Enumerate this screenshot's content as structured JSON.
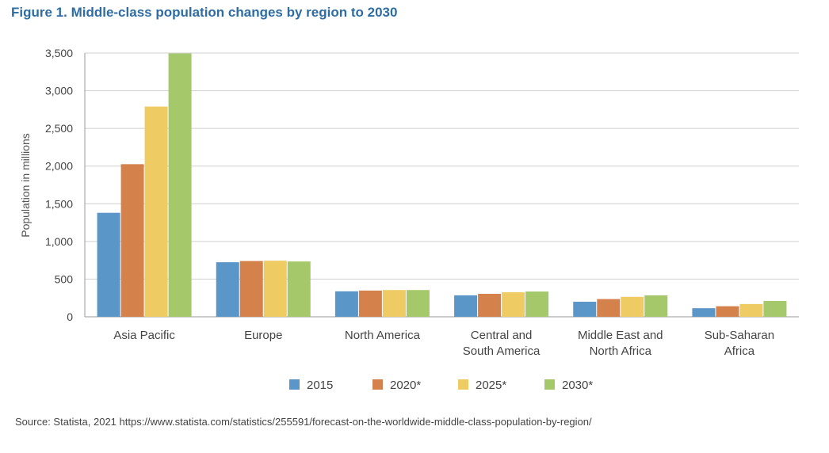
{
  "title": "Figure 1. Middle-class population changes by region to 2030",
  "source": "Source: Statista, 2021 https://www.statista.com/statistics/255591/forecast-on-the-worldwide-middle-class-population-by-region/",
  "chart_data": {
    "type": "bar",
    "ylabel": "Population in millions",
    "xlabel": "",
    "ylim": [
      0,
      3500
    ],
    "yticks": [
      0,
      500,
      1000,
      1500,
      2000,
      2500,
      3000,
      3500
    ],
    "ytick_labels": [
      "0",
      "500",
      "1,000",
      "1,500",
      "2,000",
      "2,500",
      "3,000",
      "3,500"
    ],
    "grid": true,
    "legend_position": "bottom",
    "categories": [
      [
        "Asia Pacific"
      ],
      [
        "Europe"
      ],
      [
        "North America"
      ],
      [
        "Central and",
        "South America"
      ],
      [
        "Middle East and",
        "North Africa"
      ],
      [
        "Sub-Saharan",
        "Africa"
      ]
    ],
    "series": [
      {
        "name": "2015",
        "color": "#5b96c9",
        "values": [
          1380,
          724,
          338,
          285,
          200,
          114
        ]
      },
      {
        "name": "2020*",
        "color": "#d4814c",
        "values": [
          2025,
          740,
          348,
          305,
          235,
          140
        ]
      },
      {
        "name": "2025*",
        "color": "#efcb63",
        "values": [
          2790,
          744,
          355,
          325,
          265,
          170
        ]
      },
      {
        "name": "2030*",
        "color": "#a5c86a",
        "values": [
          3495,
          734,
          355,
          335,
          285,
          210
        ]
      }
    ]
  }
}
